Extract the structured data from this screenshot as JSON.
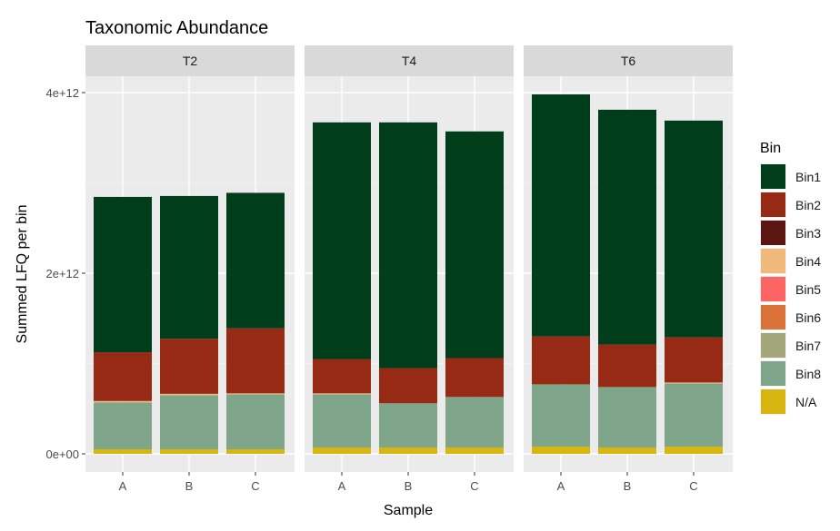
{
  "chart_data": {
    "type": "bar",
    "stacked": true,
    "title": "Taxonomic Abundance",
    "xlabel": "Sample",
    "ylabel": "Summed LFQ per bin",
    "ylim": [
      0,
      4200000000000.0
    ],
    "yticks": [
      0,
      2000000000000.0,
      4000000000000.0
    ],
    "ytick_labels": [
      "0e+00",
      "2e+12",
      "4e+12"
    ],
    "facets": [
      "T2",
      "T4",
      "T6"
    ],
    "categories": [
      "A",
      "B",
      "C"
    ],
    "legend_title": "Bin",
    "legend_position": "right",
    "stack_order": [
      "N/A",
      "Bin8",
      "Bin7",
      "Bin6",
      "Bin5",
      "Bin4",
      "Bin3",
      "Bin2",
      "Bin1"
    ],
    "series": [
      {
        "name": "Bin1",
        "color": "#003d1b",
        "values": {
          "T2": [
            1720000000000.0,
            1580000000000.0,
            1500000000000.0
          ],
          "T4": [
            2620000000000.0,
            2720000000000.0,
            2510000000000.0
          ],
          "T6": [
            2680000000000.0,
            2600000000000.0,
            2400000000000.0
          ]
        }
      },
      {
        "name": "Bin2",
        "color": "#962a14",
        "values": {
          "T2": [
            540000000000.0,
            610000000000.0,
            720000000000.0
          ],
          "T4": [
            380000000000.0,
            390000000000.0,
            430000000000.0
          ],
          "T6": [
            530000000000.0,
            470000000000.0,
            500000000000.0
          ]
        }
      },
      {
        "name": "Bin3",
        "color": "#5c1612",
        "values": {
          "T2": [
            0.0,
            0.0,
            0.0
          ],
          "T4": [
            0.0,
            0.0,
            0.0
          ],
          "T6": [
            0.0,
            0.0,
            0.0
          ]
        }
      },
      {
        "name": "Bin4",
        "color": "#f0b97a",
        "values": {
          "T2": [
            15000000000.0,
            15000000000.0,
            10000000000.0
          ],
          "T4": [
            10000000000.0,
            0.0,
            0.0
          ],
          "T6": [
            0.0,
            0.0,
            10000000000.0
          ]
        }
      },
      {
        "name": "Bin5",
        "color": "#ff6464",
        "values": {
          "T2": [
            0.0,
            0.0,
            0.0
          ],
          "T4": [
            0.0,
            0.0,
            0.0
          ],
          "T6": [
            0.0,
            0.0,
            0.0
          ]
        }
      },
      {
        "name": "Bin6",
        "color": "#d97138",
        "values": {
          "T2": [
            0.0,
            0.0,
            0.0
          ],
          "T4": [
            0.0,
            0.0,
            0.0
          ],
          "T6": [
            0.0,
            0.0,
            0.0
          ]
        }
      },
      {
        "name": "Bin7",
        "color": "#a3a679",
        "values": {
          "T2": [
            0.0,
            0.0,
            0.0
          ],
          "T4": [
            0.0,
            0.0,
            0.0
          ],
          "T6": [
            0.0,
            0.0,
            0.0
          ]
        }
      },
      {
        "name": "Bin8",
        "color": "#7fa68a",
        "values": {
          "T2": [
            520000000000.0,
            600000000000.0,
            610000000000.0
          ],
          "T4": [
            590000000000.0,
            490000000000.0,
            560000000000.0
          ],
          "T6": [
            690000000000.0,
            670000000000.0,
            700000000000.0
          ]
        }
      },
      {
        "name": "N/A",
        "color": "#d6b60f",
        "values": {
          "T2": [
            50000000000.0,
            50000000000.0,
            50000000000.0
          ],
          "T4": [
            70000000000.0,
            70000000000.0,
            70000000000.0
          ],
          "T6": [
            80000000000.0,
            70000000000.0,
            80000000000.0
          ]
        }
      }
    ]
  }
}
